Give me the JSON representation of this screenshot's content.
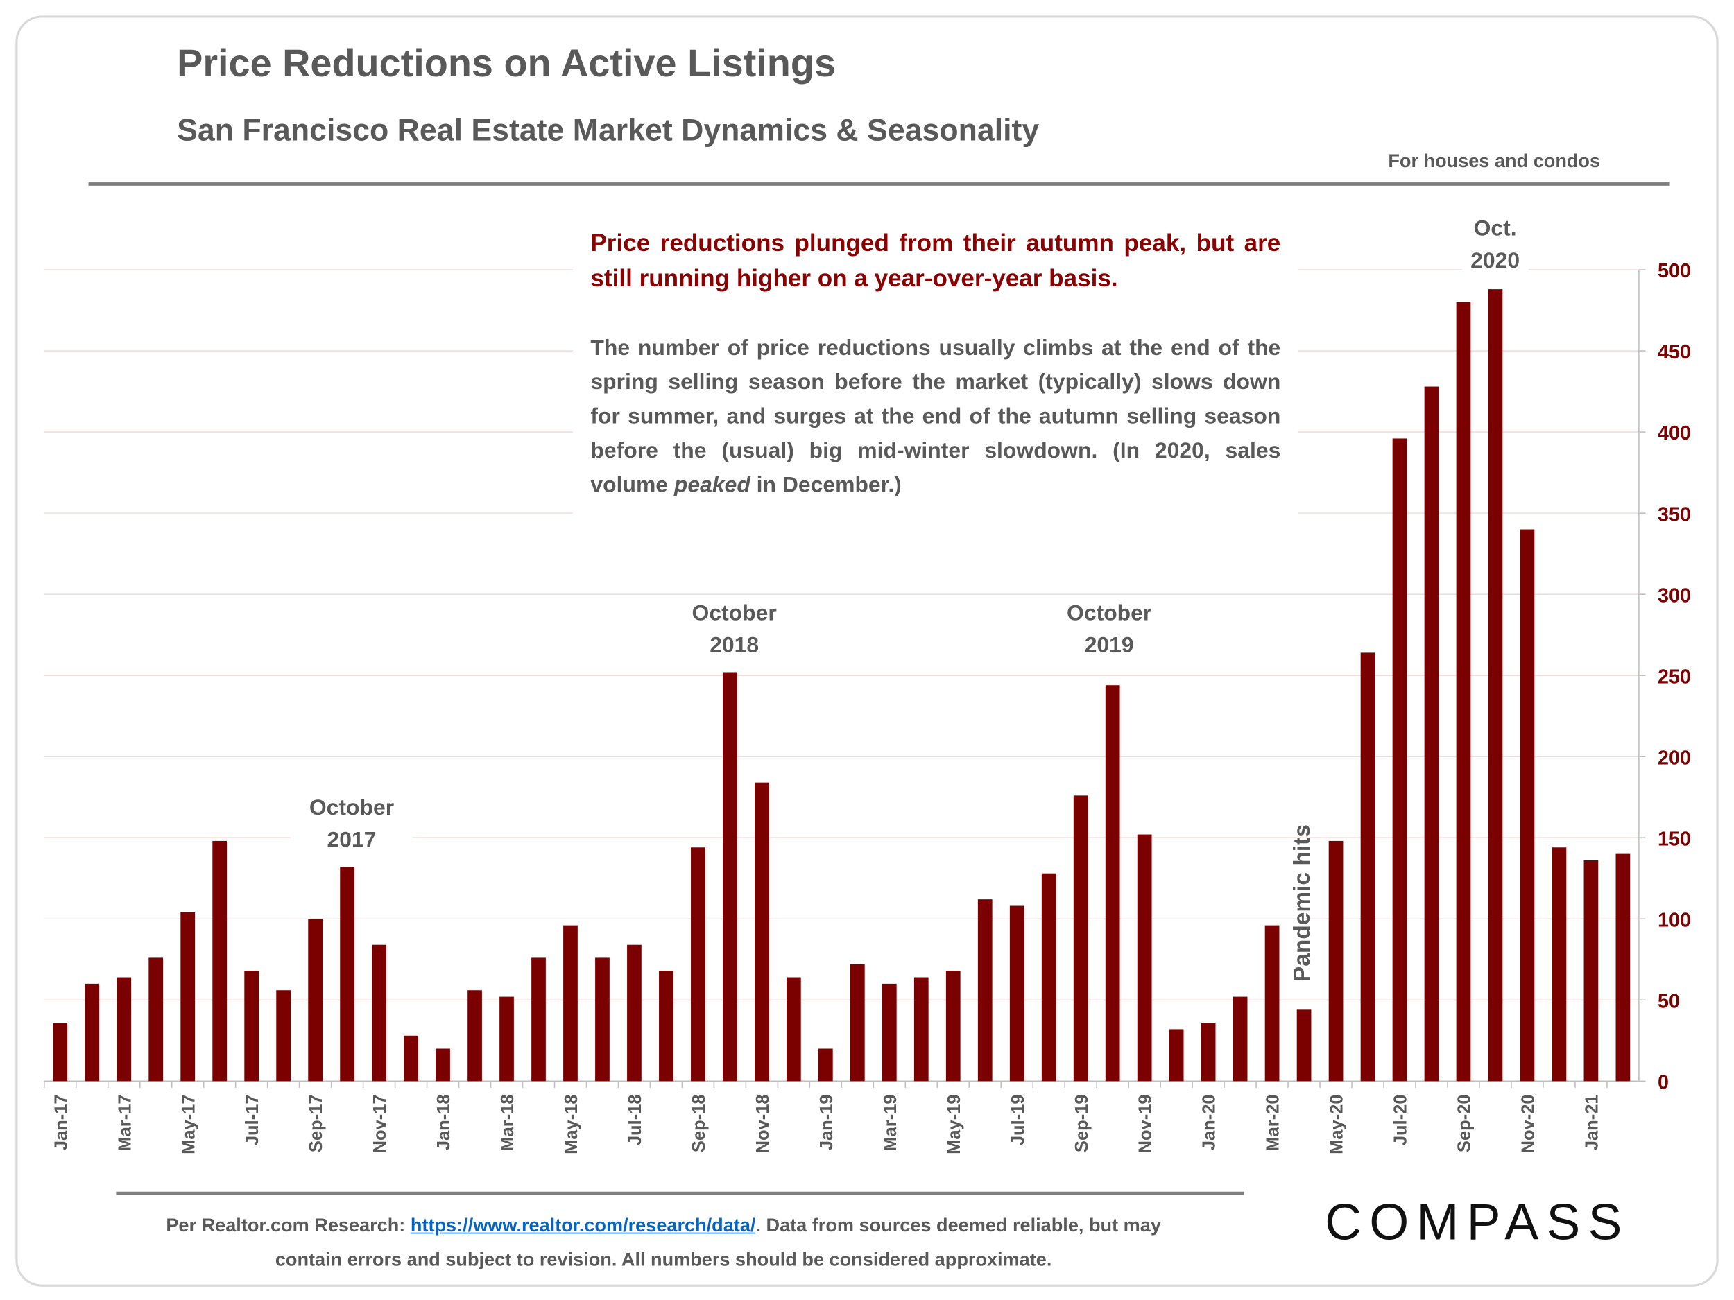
{
  "header": {
    "title": "Price Reductions on Active Listings",
    "subtitle": "San Francisco Real Estate Market Dynamics & Seasonality",
    "note": "For houses and condos"
  },
  "callout": {
    "headline": "Price reductions plunged from their autumn peak, but are still running higher on a year-over-year basis.",
    "body_before": "The number of price reductions usually climbs at the end of the spring selling season before the market (typically) slows down for summer, and surges at the end of the autumn selling season before the (usual) big mid-winter slowdown. (In 2020, sales volume ",
    "body_emphasis": "peaked",
    "body_after": " in December.)"
  },
  "chart_data": {
    "type": "bar",
    "color": "#7b0000",
    "grid": true,
    "categories": [
      "Jan-17",
      null,
      "Mar-17",
      null,
      "May-17",
      null,
      "Jul-17",
      null,
      "Sep-17",
      null,
      "Nov-17",
      null,
      "Jan-18",
      null,
      "Mar-18",
      null,
      "May-18",
      null,
      "Jul-18",
      null,
      "Sep-18",
      null,
      "Nov-18",
      null,
      "Jan-19",
      null,
      "Mar-19",
      null,
      "May-19",
      null,
      "Jul-19",
      null,
      "Sep-19",
      null,
      "Nov-19",
      null,
      "Jan-20",
      null,
      "Mar-20",
      null,
      "May-20",
      null,
      "Jul-20",
      null,
      "Sep-20",
      null,
      "Nov-20",
      null,
      "Jan-21",
      null
    ],
    "values": [
      36,
      60,
      64,
      76,
      104,
      148,
      68,
      56,
      100,
      132,
      84,
      28,
      20,
      56,
      52,
      76,
      96,
      76,
      84,
      68,
      144,
      252,
      184,
      64,
      20,
      72,
      60,
      64,
      68,
      112,
      108,
      128,
      176,
      244,
      152,
      32,
      36,
      52,
      96,
      44,
      148,
      264,
      396,
      428,
      480,
      488,
      340,
      144,
      136,
      140
    ],
    "ylim": [
      0,
      500
    ],
    "yticks": [
      0,
      50,
      100,
      150,
      200,
      250,
      300,
      350,
      400,
      450,
      500
    ],
    "annotations": [
      "October 2017",
      "October 2018",
      "October 2019",
      "Oct. 2020"
    ],
    "event_label": "Pandemic hits"
  },
  "footer": {
    "source_prefix": "Per Realtor.com Research: ",
    "link": "https://www.realtor.com/research/data/",
    "source_suffix": ". Data from sources deemed reliable, but may contain errors and subject to revision. All numbers should be considered approximate.",
    "logo": "COMPASS"
  }
}
